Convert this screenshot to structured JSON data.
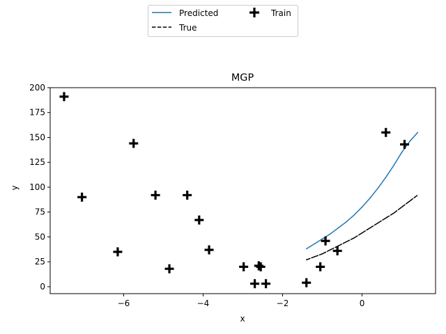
{
  "chart_data": {
    "type": "line",
    "title": "MGP",
    "xlabel": "x",
    "ylabel": "y",
    "xlim": [
      -7.85,
      1.85
    ],
    "ylim": [
      -7,
      200
    ],
    "xticks": [
      -6,
      -4,
      -2,
      0
    ],
    "yticks": [
      0,
      25,
      50,
      75,
      100,
      125,
      150,
      175,
      200
    ],
    "legend": {
      "placement": "top-center, outside plot",
      "columns": 2
    },
    "series": [
      {
        "name": "Predicted",
        "kind": "line",
        "color": "#1f77b4",
        "style": "solid",
        "x": [
          -1.4,
          -1.2,
          -1.0,
          -0.8,
          -0.6,
          -0.4,
          -0.2,
          0.0,
          0.2,
          0.4,
          0.6,
          0.8,
          1.0,
          1.2,
          1.4
        ],
        "y": [
          38,
          43,
          48,
          53,
          59,
          65,
          72,
          80,
          89,
          99,
          110,
          122,
          135,
          146,
          155
        ]
      },
      {
        "name": "True",
        "kind": "line",
        "color": "#000000",
        "style": "dashed",
        "x": [
          -1.4,
          -1.2,
          -1.0,
          -0.8,
          -0.6,
          -0.4,
          -0.2,
          0.0,
          0.2,
          0.4,
          0.6,
          0.8,
          1.0,
          1.2,
          1.4
        ],
        "y": [
          27,
          30,
          33,
          37,
          41,
          45,
          49,
          54,
          59,
          64,
          69,
          74,
          80,
          86,
          92
        ]
      },
      {
        "name": "Train",
        "kind": "scatter",
        "marker": "plus",
        "color": "#000000",
        "x": [
          -7.5,
          -7.05,
          -6.15,
          -5.75,
          -5.2,
          -4.85,
          -4.4,
          -4.1,
          -3.85,
          -2.98,
          -2.7,
          -2.6,
          -2.55,
          -2.42,
          -1.4,
          -1.05,
          -0.92,
          -0.62,
          0.6,
          1.07
        ],
        "y": [
          191,
          90,
          35,
          144,
          92,
          18,
          92,
          67,
          37,
          20,
          3,
          21,
          20,
          3,
          4,
          20,
          46,
          36,
          155,
          143
        ]
      }
    ]
  }
}
